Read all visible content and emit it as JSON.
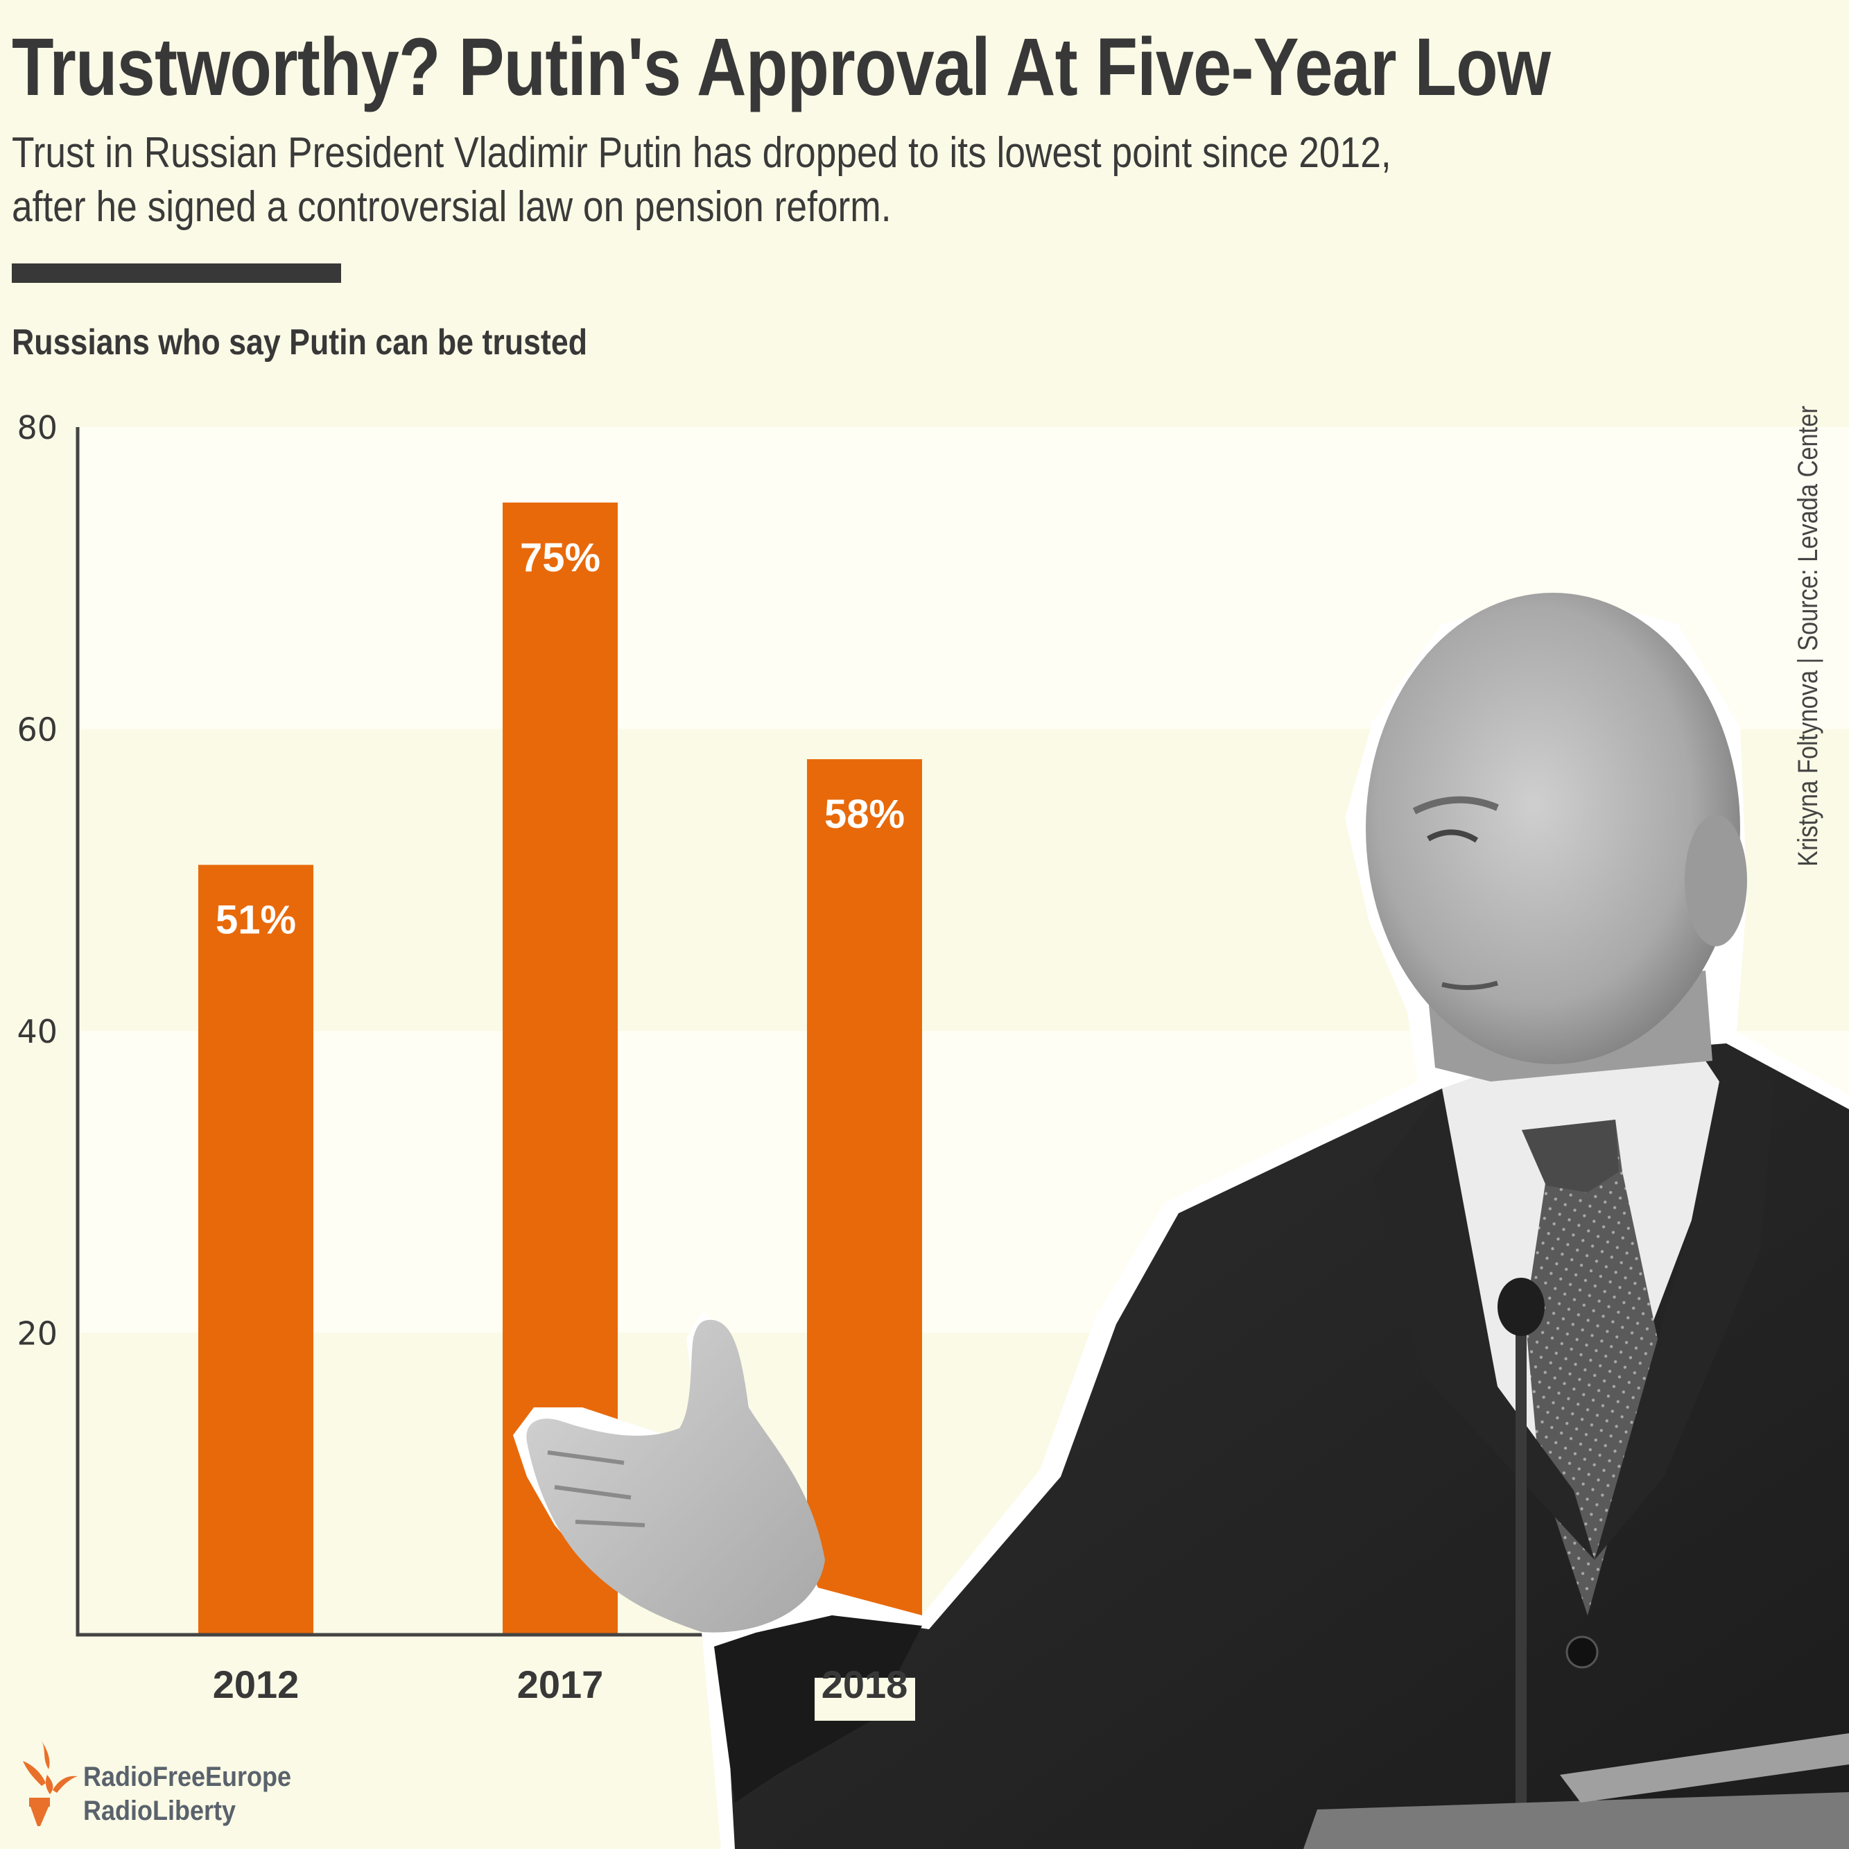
{
  "header": {
    "title": "Trustworthy? Putin's Approval At Five-Year Low",
    "subtitle_lines": [
      "Trust in Russian President Vladimir Putin has dropped to its lowest point since 2012,",
      "after he signed a controversial law on pension reform."
    ]
  },
  "credit": "Kristyna Foltynova | Source: Levada Center",
  "logo": {
    "line1": "RadioFreeEurope",
    "line2": "RadioLiberty",
    "icon": "torch-icon"
  },
  "colors": {
    "background": "#fbfae6",
    "band_light": "#fefef4",
    "bar": "#e8690a",
    "text": "#383838",
    "logo_orange": "#e8702a",
    "logo_text": "#59626c"
  },
  "chart_data": {
    "type": "bar",
    "title": "Russians who say Putin can be trusted",
    "xlabel": "",
    "ylabel": "",
    "categories": [
      "2012",
      "2017",
      "2018"
    ],
    "values": [
      51,
      75,
      58
    ],
    "value_labels": [
      "51%",
      "75%",
      "58%"
    ],
    "ylim": [
      0,
      80
    ],
    "yticks": [
      20,
      40,
      60,
      80
    ],
    "ytick_labels": [
      "20",
      "40",
      "60",
      "80"
    ],
    "grid": "alternating horizontal bands"
  }
}
